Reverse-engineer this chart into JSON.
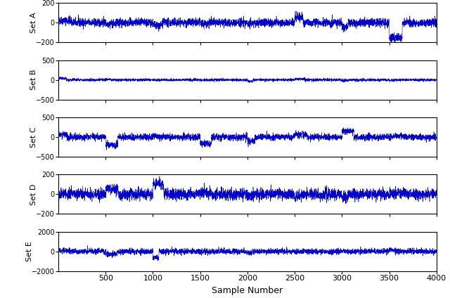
{
  "n_samples": 4000,
  "sets": [
    {
      "label": "Set A",
      "ylim": [
        -200,
        200
      ],
      "yticks": [
        -200,
        0,
        200
      ],
      "noise_std": 30,
      "seed": 42
    },
    {
      "label": "Set B",
      "ylim": [
        -500,
        500
      ],
      "yticks": [
        -500,
        0,
        500
      ],
      "noise_std": 25,
      "seed": 43
    },
    {
      "label": "Set C",
      "ylim": [
        -500,
        500
      ],
      "yticks": [
        -500,
        0,
        500
      ],
      "noise_std": 60,
      "seed": 44
    },
    {
      "label": "Set D",
      "ylim": [
        -200,
        200
      ],
      "yticks": [
        -200,
        0,
        200
      ],
      "noise_std": 40,
      "seed": 45
    },
    {
      "label": "Set E",
      "ylim": [
        -2000,
        2000
      ],
      "yticks": [
        -2000,
        0,
        2000
      ],
      "noise_std": 200,
      "seed": 46
    }
  ],
  "xticks": [
    500,
    1000,
    1500,
    2000,
    2500,
    3000,
    3500,
    4000
  ],
  "xlabel": "Sample Number",
  "line_color": "#0000CC",
  "line_width": 0.4,
  "background_color": "#ffffff"
}
